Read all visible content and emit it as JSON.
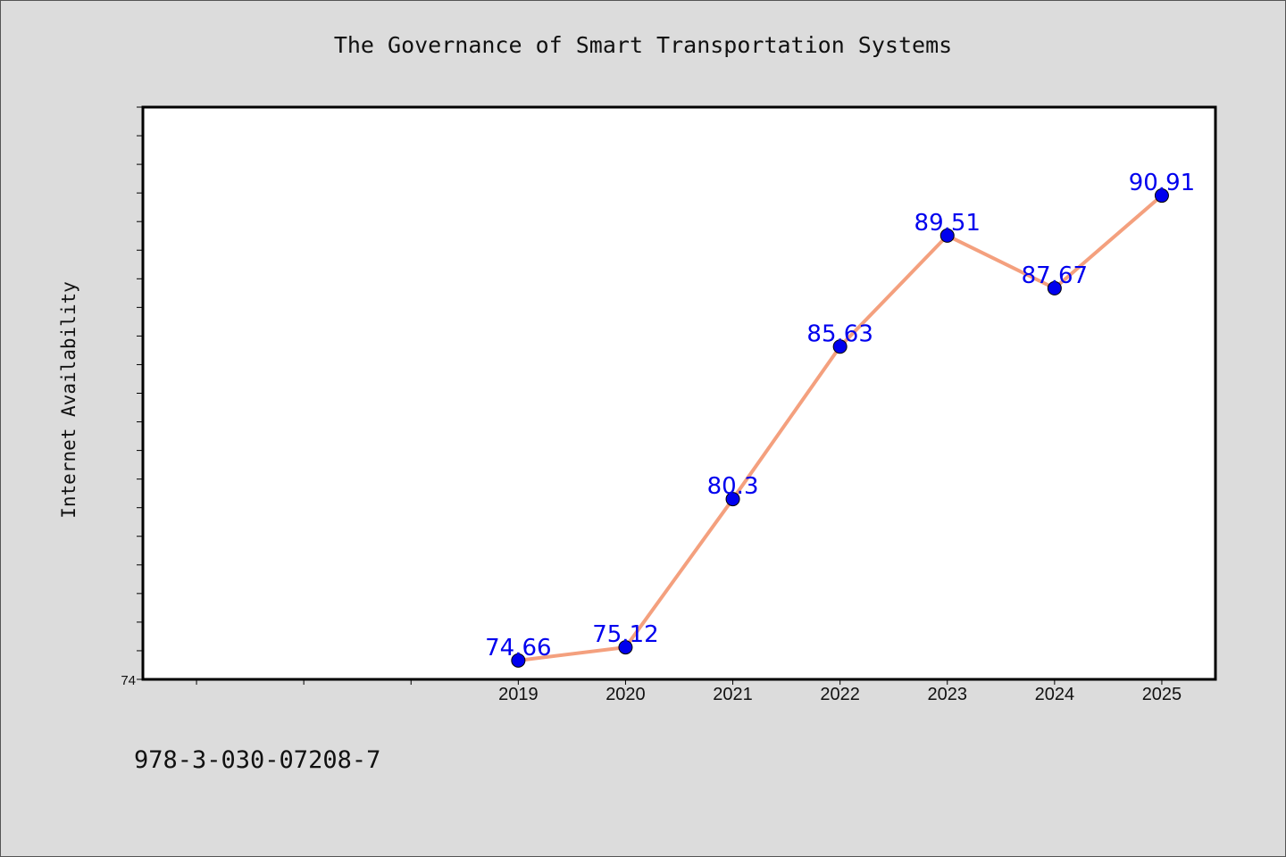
{
  "chart_data": {
    "type": "line",
    "title": "The Governance of Smart Transportation Systems",
    "xlabel": "",
    "ylabel": "Internet Availability",
    "categories": [
      "2019",
      "2020",
      "2021",
      "2022",
      "2023",
      "2024",
      "2025"
    ],
    "series": [
      {
        "values": [
          74.66,
          75.12,
          80.3,
          85.63,
          89.51,
          87.67,
          90.91
        ]
      }
    ],
    "data_labels": [
      "74.66",
      "75.12",
      "80.3",
      "85.63",
      "89.51",
      "87.67",
      "90.91"
    ],
    "y_tick_labels": [
      "74"
    ],
    "ylim": [
      74,
      94
    ],
    "x_category_slots": 10,
    "grid": false,
    "line_color": "#f4a07e",
    "marker_color": "#0000ee",
    "label_color": "#0000ee"
  },
  "footer": {
    "isbn": "978-3-030-07208-7"
  }
}
